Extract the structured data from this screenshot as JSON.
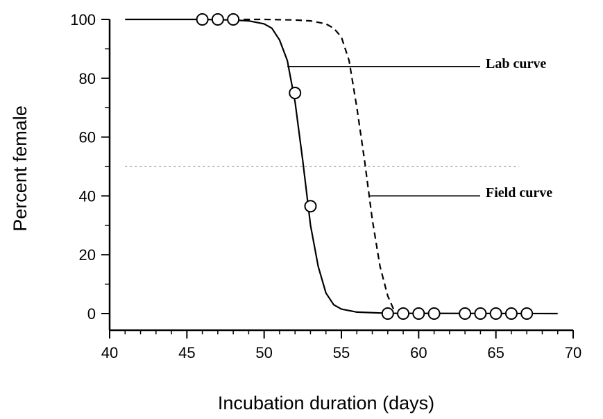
{
  "chart_data": {
    "type": "line",
    "xlabel": "Incubation duration (days)",
    "ylabel": "Percent female",
    "xlim": [
      40,
      70
    ],
    "ylim": [
      0,
      100
    ],
    "xticks": [
      "40",
      "45",
      "50",
      "55",
      "60",
      "65",
      "70"
    ],
    "yticks": [
      "0",
      "20",
      "40",
      "60",
      "80",
      "100"
    ],
    "grid": false,
    "reference_line": {
      "y": 50,
      "x_range": [
        41,
        66.5
      ],
      "style": "dotted"
    },
    "series": [
      {
        "kind": "curve",
        "style": "solid",
        "x": [
          41,
          46,
          48,
          49,
          50,
          50.5,
          51,
          51.5,
          52,
          52.5,
          53,
          53.5,
          54,
          54.5,
          55,
          56,
          58,
          69
        ],
        "y": [
          100,
          100,
          99.8,
          99.5,
          98.5,
          97,
          93,
          86,
          72,
          52,
          30,
          16,
          7,
          3,
          1.5,
          0.5,
          0.1,
          0
        ]
      },
      {
        "kind": "curve",
        "style": "dashed",
        "x": [
          48,
          50,
          52,
          53,
          54,
          54.5,
          55,
          55.5,
          56,
          56.5,
          57,
          57.5,
          58,
          58.5
        ],
        "y": [
          100,
          100,
          99.8,
          99.5,
          98.5,
          97,
          94,
          86,
          70,
          52,
          32,
          16,
          6,
          0
        ]
      },
      {
        "kind": "points",
        "marker": "open-circle",
        "x": [
          46,
          47,
          48,
          52,
          53,
          58,
          59,
          60,
          61,
          63,
          64,
          65,
          66,
          67
        ],
        "y": [
          100,
          100,
          100,
          75,
          36.5,
          0,
          0,
          0,
          0,
          0,
          0,
          0,
          0,
          0
        ]
      }
    ],
    "annotations": [
      {
        "text": "Lab curve",
        "points_to": {
          "x": 51.5,
          "y": 84
        }
      },
      {
        "text": "Field curve",
        "points_to": {
          "x": 56.8,
          "y": 40
        }
      }
    ]
  }
}
